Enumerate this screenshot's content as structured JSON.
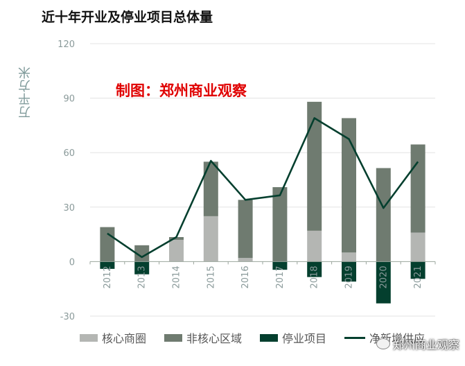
{
  "title": "近十年开业及停业项目总体量",
  "watermark": "制图：郑州商业观察",
  "brand": "郑州商业观察",
  "chart_data": {
    "type": "bar",
    "title": "近十年开业及停业项目总体量",
    "ylabel": "万平方米",
    "ylim": [
      -30,
      120
    ],
    "yticks": [
      -30,
      0,
      30,
      60,
      90,
      120
    ],
    "grid": true,
    "legend_position": "bottom",
    "categories": [
      "2012",
      "2013",
      "2014",
      "2015",
      "2016",
      "2017",
      "2018",
      "2019",
      "2020",
      "2021"
    ],
    "series": [
      {
        "name": "核心商圈",
        "type": "stacked-bar",
        "color": "#b4b6b3",
        "values": [
          0,
          0,
          12,
          25,
          2,
          0,
          17,
          5,
          0,
          16
        ]
      },
      {
        "name": "非核心区域",
        "type": "stacked-bar",
        "color": "#6f7b70",
        "values": [
          19,
          9,
          1.5,
          30,
          32,
          41,
          71,
          74,
          51.5,
          48.5
        ]
      },
      {
        "name": "停业项目",
        "type": "negative-bar",
        "color": "#043f2e",
        "values": [
          -4,
          -7,
          0,
          0,
          0,
          -4.5,
          -8.5,
          -11,
          -23,
          -9.5
        ]
      },
      {
        "name": "净新增供应",
        "type": "line",
        "color": "#043f2e",
        "values": [
          15.5,
          2.5,
          13.5,
          55.5,
          34,
          36.5,
          79,
          67.5,
          29.5,
          55
        ]
      }
    ]
  }
}
